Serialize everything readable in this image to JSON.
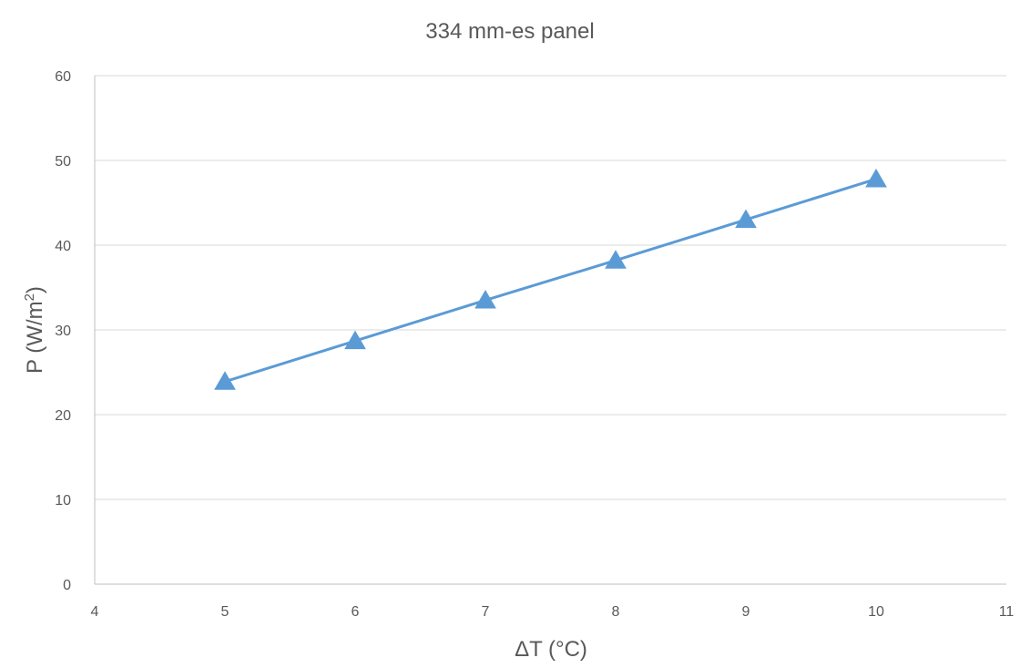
{
  "chart_data": {
    "type": "line",
    "title": "334 mm-es panel",
    "xlabel": "ΔT (°C)",
    "ylabel_main": "P (W/m",
    "ylabel_sup": "2",
    "ylabel_close": ")",
    "xlim": [
      4,
      11
    ],
    "ylim": [
      0,
      60
    ],
    "xticks": [
      4,
      5,
      6,
      7,
      8,
      9,
      10,
      11
    ],
    "yticks": [
      0,
      10,
      20,
      30,
      40,
      50,
      60
    ],
    "grid": true,
    "legend": "none",
    "series": [
      {
        "marker": "triangle",
        "color": "#5b9bd5",
        "x": [
          5,
          6,
          7,
          8,
          9,
          10
        ],
        "y": [
          23.9,
          28.7,
          33.5,
          38.2,
          43.0,
          47.8
        ]
      }
    ]
  }
}
